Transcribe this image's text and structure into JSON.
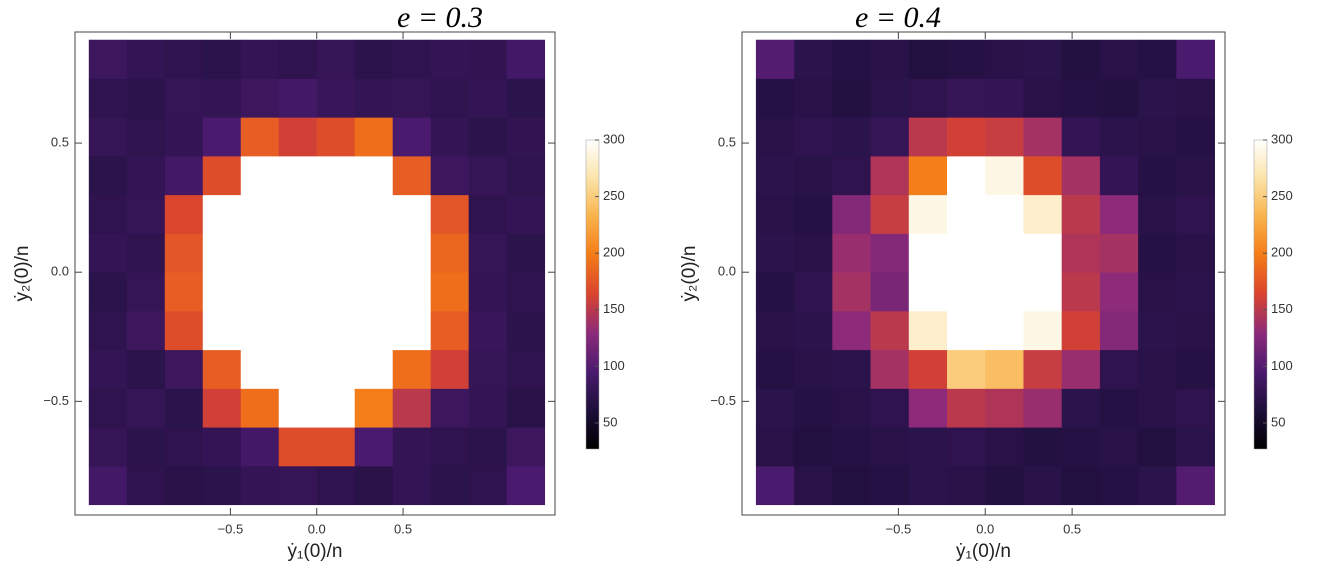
{
  "chart_data": [
    {
      "type": "heatmap",
      "title": "e = 0.3",
      "x_label": "ẏ₁(0)/n",
      "y_label": "ẏ₂(0)/n",
      "xlim": [
        -1.4,
        1.38
      ],
      "ylim": [
        -0.94,
        0.93
      ],
      "xticks": [
        {
          "value": -0.5,
          "label": "−0.5"
        },
        {
          "value": 0,
          "label": "0.0"
        },
        0.5
      ],
      "yticks": [
        {
          "value": -0.5,
          "label": "−0.5"
        },
        {
          "value": 0,
          "label": "0.0"
        },
        0.5
      ],
      "xbins": [
        -1.32,
        -1.1,
        -0.88,
        -0.66,
        -0.44,
        -0.22,
        0,
        0.22,
        0.44,
        0.66,
        0.88,
        1.1,
        1.32
      ],
      "ybins": [
        -0.9,
        -0.75,
        -0.6,
        -0.45,
        -0.3,
        -0.15,
        0,
        0.15,
        0.3,
        0.45,
        0.6,
        0.75,
        0.9
      ],
      "values": [
        [
          90,
          75,
          70,
          72,
          78,
          80,
          75,
          70,
          78,
          72,
          75,
          95
        ],
        [
          80,
          72,
          75,
          78,
          90,
          170,
          170,
          95,
          78,
          75,
          72,
          85
        ],
        [
          75,
          80,
          72,
          160,
          190,
          300,
          300,
          200,
          150,
          85,
          78,
          70
        ],
        [
          78,
          72,
          85,
          180,
          300,
          300,
          300,
          300,
          190,
          160,
          80,
          75
        ],
        [
          75,
          85,
          170,
          300,
          300,
          300,
          300,
          300,
          300,
          180,
          82,
          72
        ],
        [
          72,
          80,
          180,
          300,
          300,
          300,
          300,
          300,
          300,
          190,
          78,
          75
        ],
        [
          78,
          75,
          175,
          300,
          300,
          300,
          300,
          300,
          300,
          185,
          80,
          72
        ],
        [
          75,
          80,
          165,
          300,
          300,
          300,
          300,
          300,
          300,
          175,
          75,
          78
        ],
        [
          72,
          78,
          90,
          170,
          300,
          300,
          300,
          300,
          180,
          85,
          80,
          75
        ],
        [
          80,
          75,
          78,
          95,
          180,
          160,
          170,
          190,
          95,
          78,
          72,
          76
        ],
        [
          75,
          72,
          80,
          78,
          85,
          90,
          82,
          78,
          80,
          75,
          78,
          72
        ],
        [
          85,
          78,
          75,
          72,
          78,
          75,
          80,
          72,
          75,
          78,
          76,
          90
        ]
      ],
      "clim": [
        27,
        300
      ],
      "cticks": [
        50,
        100,
        150,
        200,
        250,
        300
      ],
      "colormap": [
        "#000000",
        "#1d0f3a",
        "#4a1a6e",
        "#8c2a7a",
        "#d9432f",
        "#f47a16",
        "#f9b24a",
        "#fbe3a8",
        "#ffffff"
      ]
    },
    {
      "type": "heatmap",
      "title": "e = 0.4",
      "x_label": "ẏ₁(0)/n",
      "y_label": "ẏ₂(0)/n",
      "xlim": [
        -1.4,
        1.38
      ],
      "ylim": [
        -0.94,
        0.93
      ],
      "xticks": [
        {
          "value": -0.5,
          "label": "−0.5"
        },
        {
          "value": 0,
          "label": "0.0"
        },
        0.5
      ],
      "yticks": [
        {
          "value": -0.5,
          "label": "−0.5"
        },
        {
          "value": 0,
          "label": "0.0"
        },
        0.5
      ],
      "xbins": [
        -1.32,
        -1.1,
        -0.88,
        -0.66,
        -0.44,
        -0.22,
        0,
        0.22,
        0.44,
        0.66,
        0.88,
        1.1,
        1.32
      ],
      "ybins": [
        -0.9,
        -0.75,
        -0.6,
        -0.45,
        -0.3,
        -0.15,
        0,
        0.15,
        0.3,
        0.45,
        0.6,
        0.75,
        0.9
      ],
      "values": [
        [
          95,
          70,
          65,
          68,
          72,
          70,
          66,
          70,
          65,
          68,
          72,
          100
        ],
        [
          70,
          65,
          68,
          70,
          72,
          75,
          70,
          66,
          68,
          70,
          65,
          72
        ],
        [
          72,
          68,
          70,
          75,
          130,
          150,
          145,
          135,
          72,
          68,
          70,
          75
        ],
        [
          68,
          70,
          72,
          140,
          160,
          250,
          240,
          155,
          135,
          75,
          70,
          68
        ],
        [
          70,
          72,
          130,
          150,
          280,
          300,
          300,
          290,
          160,
          125,
          72,
          70
        ],
        [
          68,
          75,
          140,
          120,
          300,
          300,
          300,
          300,
          150,
          130,
          70,
          72
        ],
        [
          72,
          70,
          135,
          125,
          300,
          300,
          300,
          300,
          145,
          140,
          68,
          70
        ],
        [
          70,
          68,
          125,
          155,
          290,
          300,
          300,
          280,
          150,
          130,
          70,
          75
        ],
        [
          72,
          70,
          75,
          145,
          200,
          300,
          290,
          170,
          140,
          78,
          68,
          70
        ],
        [
          70,
          75,
          72,
          80,
          150,
          160,
          155,
          140,
          78,
          72,
          70,
          68
        ],
        [
          68,
          70,
          66,
          72,
          75,
          80,
          78,
          70,
          68,
          66,
          72,
          70
        ],
        [
          100,
          72,
          68,
          70,
          65,
          68,
          70,
          72,
          66,
          70,
          68,
          95
        ]
      ],
      "clim": [
        27,
        300
      ],
      "cticks": [
        50,
        100,
        150,
        200,
        250,
        300
      ],
      "colormap": [
        "#000000",
        "#1d0f3a",
        "#4a1a6e",
        "#8c2a7a",
        "#d9432f",
        "#f47a16",
        "#f9b24a",
        "#fbe3a8",
        "#ffffff"
      ]
    }
  ]
}
